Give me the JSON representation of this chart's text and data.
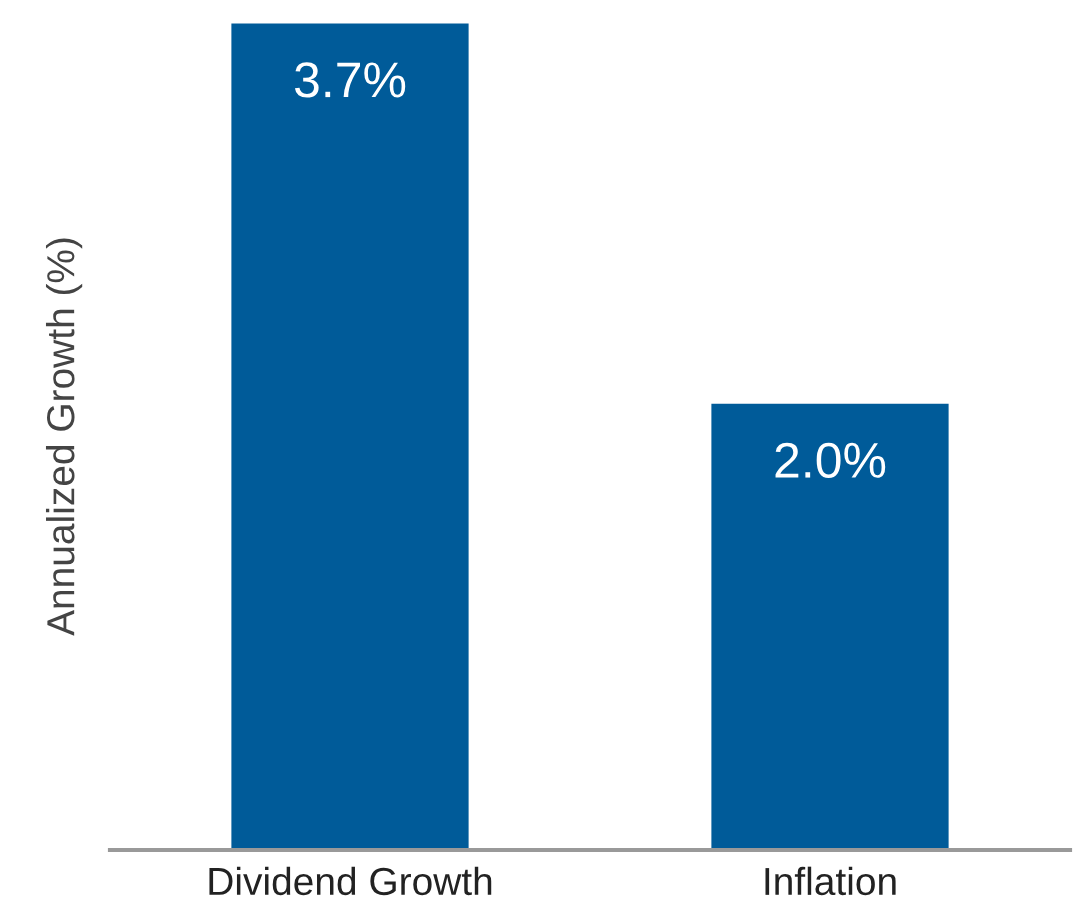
{
  "chart_data": {
    "type": "bar",
    "ylabel": "Annualized Growth (%)",
    "categories": [
      "Dividend Growth",
      "Inflation"
    ],
    "values": [
      3.7,
      2.0
    ],
    "color": "#005b99",
    "value_labels": [
      "3.7%",
      "2.0%"
    ],
    "ylim": [
      0,
      3.7
    ],
    "tick_labels": "x",
    "grid": false,
    "legend": false
  }
}
